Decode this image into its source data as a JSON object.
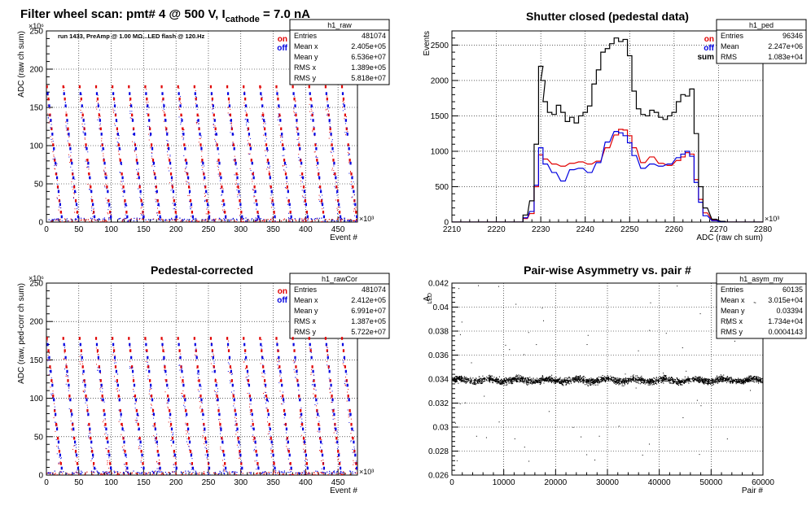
{
  "chart_data": [
    {
      "id": "raw",
      "type": "scatter",
      "title": "Filter wheel scan: pmt#   4 @   500 V, I",
      "title_sub": "cathode",
      "title_tail": " = 7.0 nA",
      "annotation": "run 1433, PreAmp @ 1.00 MΩ...LED flash @  120.Hz",
      "xlabel": "Event #",
      "ylabel": "ADC (raw ch sum)",
      "x_exponent": "×10³",
      "y_exponent": "×10⁶",
      "xlim": [
        0,
        480
      ],
      "ylim": [
        0,
        250
      ],
      "xticks": [
        "0",
        "50",
        "100",
        "150",
        "200",
        "250",
        "300",
        "350",
        "400",
        "450"
      ],
      "yticks": [
        "0",
        "50",
        "100",
        "150",
        "200",
        "250"
      ],
      "grid": true,
      "legend": {
        "position": "top-right",
        "entries": [
          {
            "label": "on",
            "color": "#e00000"
          },
          {
            "label": "off",
            "color": "#0000e0"
          }
        ]
      },
      "stats": {
        "title": "h1_raw",
        "rows": [
          [
            "Entries",
            "481074"
          ],
          [
            "Mean x",
            "2.405e+05"
          ],
          [
            "Mean y",
            "6.536e+07"
          ],
          [
            "RMS x",
            "1.389e+05"
          ],
          [
            "RMS y",
            "5.818e+07"
          ]
        ]
      },
      "series": [
        {
          "name": "on",
          "color": "#e00000",
          "level_values": [
            177,
            161,
            140,
            122,
            101,
            81,
            63,
            46,
            28,
            13
          ]
        },
        {
          "name": "off",
          "color": "#0000e0",
          "level_values": [
            168,
            152,
            133,
            115,
            96,
            77,
            58,
            40,
            23,
            7
          ]
        }
      ],
      "cycle_period": 25.3
    },
    {
      "id": "ped",
      "type": "line",
      "title": "Shutter closed (pedestal data)",
      "xlabel": "ADC (raw ch sum)",
      "ylabel": "Events",
      "x_exponent": "×10³",
      "xlim": [
        2210,
        2280
      ],
      "ylim": [
        0,
        2700
      ],
      "xticks": [
        "2210",
        "2220",
        "2230",
        "2240",
        "2250",
        "2260",
        "2270",
        "2280"
      ],
      "yticks": [
        "0",
        "500",
        "1000",
        "1500",
        "2000",
        "2500"
      ],
      "grid": true,
      "legend": {
        "position": "top-right",
        "entries": [
          {
            "label": "on",
            "color": "#e00000"
          },
          {
            "label": "off",
            "color": "#0000e0"
          },
          {
            "label": "sum",
            "color": "#000000"
          }
        ]
      },
      "stats": {
        "title": "h1_ped",
        "rows": [
          [
            "Entries",
            "96346"
          ],
          [
            "Mean",
            "2.247e+06"
          ],
          [
            "RMS",
            "1.083e+04"
          ]
        ]
      },
      "series": [
        {
          "name": "on",
          "color": "#e00000",
          "x": [
            2226.5,
            2228,
            2229,
            2230,
            2231,
            2233,
            2235,
            2237,
            2239,
            2241,
            2243,
            2245,
            2247,
            2248,
            2249,
            2250,
            2251,
            2253,
            2255,
            2257,
            2259,
            2261,
            2262,
            2263,
            2264,
            2265,
            2266,
            2267,
            2269,
            2271
          ],
          "values": [
            50,
            120,
            500,
            950,
            890,
            820,
            790,
            830,
            850,
            820,
            860,
            1050,
            1230,
            1310,
            1300,
            1220,
            1050,
            840,
            920,
            830,
            800,
            870,
            920,
            980,
            960,
            600,
            320,
            130,
            30,
            5
          ]
        },
        {
          "name": "off",
          "color": "#0000e0",
          "x": [
            2226.5,
            2228,
            2229,
            2230,
            2231,
            2233,
            2235,
            2237,
            2239,
            2241,
            2243,
            2245,
            2247,
            2248,
            2249,
            2250,
            2251,
            2253,
            2255,
            2257,
            2259,
            2261,
            2262,
            2263,
            2264,
            2265,
            2266,
            2267,
            2269,
            2271
          ],
          "values": [
            60,
            150,
            520,
            1050,
            820,
            700,
            580,
            740,
            760,
            700,
            840,
            1130,
            1280,
            1260,
            1220,
            1120,
            940,
            760,
            820,
            790,
            820,
            910,
            960,
            1000,
            930,
            560,
            280,
            90,
            20,
            5
          ]
        },
        {
          "name": "sum",
          "color": "#000000",
          "x": [
            2226.5,
            2228,
            2229,
            2230,
            2230.5,
            2231,
            2232,
            2233,
            2234,
            2235,
            2236,
            2237,
            2238,
            2239,
            2240,
            2241,
            2242,
            2243,
            2244,
            2245,
            2246,
            2247,
            2248,
            2249,
            2250,
            2251,
            2252,
            2253,
            2254,
            2255,
            2256,
            2257,
            2258,
            2259,
            2260,
            2261,
            2262,
            2263,
            2264,
            2265,
            2266,
            2267,
            2269,
            2271
          ],
          "values": [
            100,
            300,
            1100,
            2200,
            2000,
            1700,
            1550,
            1520,
            1650,
            1550,
            1420,
            1480,
            1400,
            1500,
            1550,
            1640,
            1950,
            2150,
            2400,
            2450,
            2520,
            2600,
            2550,
            2580,
            2350,
            1850,
            1600,
            1520,
            1500,
            1580,
            1550,
            1480,
            1450,
            1500,
            1550,
            1700,
            1800,
            1780,
            1880,
            1250,
            500,
            200,
            40,
            10
          ]
        }
      ]
    },
    {
      "id": "rawcor",
      "type": "scatter",
      "title": "Pedestal-corrected",
      "xlabel": "Event #",
      "ylabel": "ADC (raw, ped-corr ch sum)",
      "x_exponent": "×10³",
      "y_exponent": "×10⁶",
      "xlim": [
        0,
        480
      ],
      "ylim": [
        0,
        250
      ],
      "xticks": [
        "0",
        "50",
        "100",
        "150",
        "200",
        "250",
        "300",
        "350",
        "400",
        "450"
      ],
      "yticks": [
        "0",
        "50",
        "100",
        "150",
        "200",
        "250"
      ],
      "grid": true,
      "legend": {
        "position": "top-right",
        "entries": [
          {
            "label": "on",
            "color": "#e00000"
          },
          {
            "label": "off",
            "color": "#0000e0"
          }
        ]
      },
      "stats": {
        "title": "h1_rawCor",
        "rows": [
          [
            "Entries",
            "481074"
          ],
          [
            "Mean x",
            "2.412e+05"
          ],
          [
            "Mean y",
            "6.991e+07"
          ],
          [
            "RMS x",
            "1.387e+05"
          ],
          [
            "RMS y",
            "5.722e+07"
          ]
        ]
      },
      "series": [
        {
          "name": "on",
          "color": "#e00000",
          "level_values": [
            178,
            162,
            141,
            123,
            103,
            84,
            66,
            48,
            31,
            15
          ]
        },
        {
          "name": "off",
          "color": "#0000e0",
          "level_values": [
            170,
            153,
            135,
            117,
            98,
            79,
            60,
            43,
            26,
            9
          ]
        }
      ],
      "cycle_period": 25.3
    },
    {
      "id": "asym",
      "type": "scatter",
      "title": "Pair-wise Asymmetry vs. pair #",
      "xlabel": "Pair #",
      "ylabel": "A",
      "ylabel_sub": "LED",
      "xlim": [
        0,
        60000
      ],
      "ylim": [
        0.026,
        0.042
      ],
      "xticks": [
        "0",
        "10000",
        "20000",
        "30000",
        "40000",
        "50000",
        "60000"
      ],
      "yticks": [
        "0.026",
        "0.028",
        "0.03",
        "0.032",
        "0.034",
        "0.036",
        "0.038",
        "0.04",
        "0.042"
      ],
      "grid": true,
      "stats": {
        "title": "h1_asym_my",
        "rows": [
          [
            "Entries",
            "60135"
          ],
          [
            "Mean x",
            "3.015e+04"
          ],
          [
            "Mean y",
            "0.03394"
          ],
          [
            "RMS x",
            "1.734e+04"
          ],
          [
            "RMS y",
            "0.0004143"
          ]
        ]
      },
      "series": [
        {
          "name": "",
          "color": "#000000",
          "mean": 0.03394,
          "rms": 0.0004143
        }
      ]
    }
  ]
}
